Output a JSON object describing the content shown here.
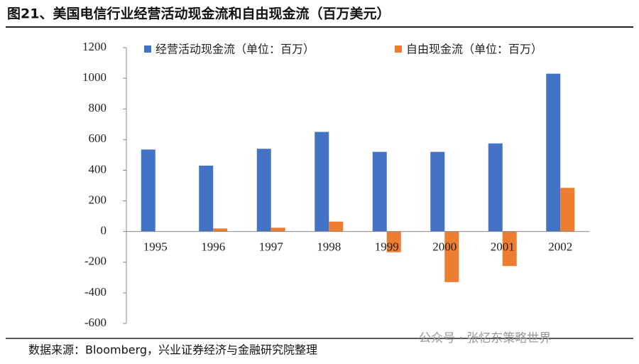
{
  "chart_data": {
    "type": "bar",
    "title": "图21、美国电信行业经营活动现金流和自由现金流（百万美元）",
    "source": "数据来源：Bloomberg，兴业证券经济与金融研究院整理",
    "watermark": "公众号 · 张忆东策略世界",
    "categories": [
      "1995",
      "1996",
      "1997",
      "1998",
      "1999",
      "2000",
      "2001",
      "2002"
    ],
    "series": [
      {
        "name": "经营活动现金流（单位：百万）",
        "color": "#4472c4",
        "values": [
          535,
          430,
          540,
          650,
          520,
          520,
          575,
          1030
        ]
      },
      {
        "name": "自由现金流（单位：百万）",
        "color": "#ed7d31",
        "values": [
          0,
          20,
          25,
          65,
          -135,
          -330,
          -225,
          285
        ]
      }
    ],
    "ylim": [
      -600,
      1200
    ],
    "yticks": [
      -600,
      -400,
      -200,
      0,
      200,
      400,
      600,
      800,
      1000,
      1200
    ],
    "grid": false,
    "legend": "top"
  }
}
